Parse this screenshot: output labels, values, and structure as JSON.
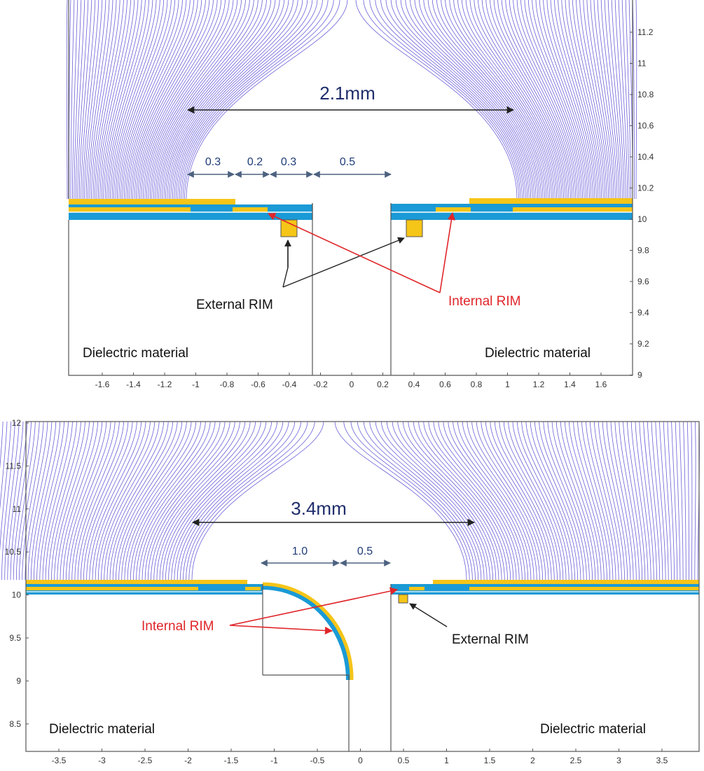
{
  "top": {
    "span_label": "2.1mm",
    "dims": [
      "0.3",
      "0.2",
      "0.3",
      "0.5"
    ],
    "internal_rim": "Internal RIM",
    "external_rim": "External RIM",
    "dielectric_left": "Dielectric material",
    "dielectric_right": "Dielectric material",
    "x_ticks": [
      "-1.6",
      "-1.4",
      "-1.2",
      "-1",
      "-0.8",
      "-0.6",
      "-0.4",
      "-0.2",
      "0",
      "0.2",
      "0.4",
      "0.6",
      "0.8",
      "1",
      "1.2",
      "1.4",
      "1.6"
    ],
    "y_ticks": [
      "11.2",
      "11",
      "10.8",
      "10.6",
      "10.4",
      "10.2",
      "10",
      "9.8",
      "9.6",
      "9.4",
      "9.2",
      "9"
    ]
  },
  "bottom": {
    "span_label": "3.4mm",
    "dims": [
      "1.0",
      "0.5"
    ],
    "internal_rim": "Internal RIM",
    "external_rim": "External RIM",
    "dielectric_left": "Dielectric material",
    "dielectric_right": "Dielectric material",
    "x_ticks": [
      "-3.5",
      "-3",
      "-2.5",
      "-2",
      "-1.5",
      "-1",
      "-0.5",
      "0",
      "0.5",
      "1",
      "1.5",
      "2",
      "2.5",
      "3",
      "3.5"
    ],
    "y_ticks": [
      "12",
      "11.5",
      "11",
      "10.5",
      "10",
      "9.5",
      "9",
      "8.5"
    ]
  },
  "colors": {
    "field_line": "#6a5fd8",
    "copper": "#f5c518",
    "kapton": "#1a9ad6",
    "arrow": "#222222",
    "red_arrow": "#e0262a",
    "dim_arrow": "#4d6280"
  }
}
